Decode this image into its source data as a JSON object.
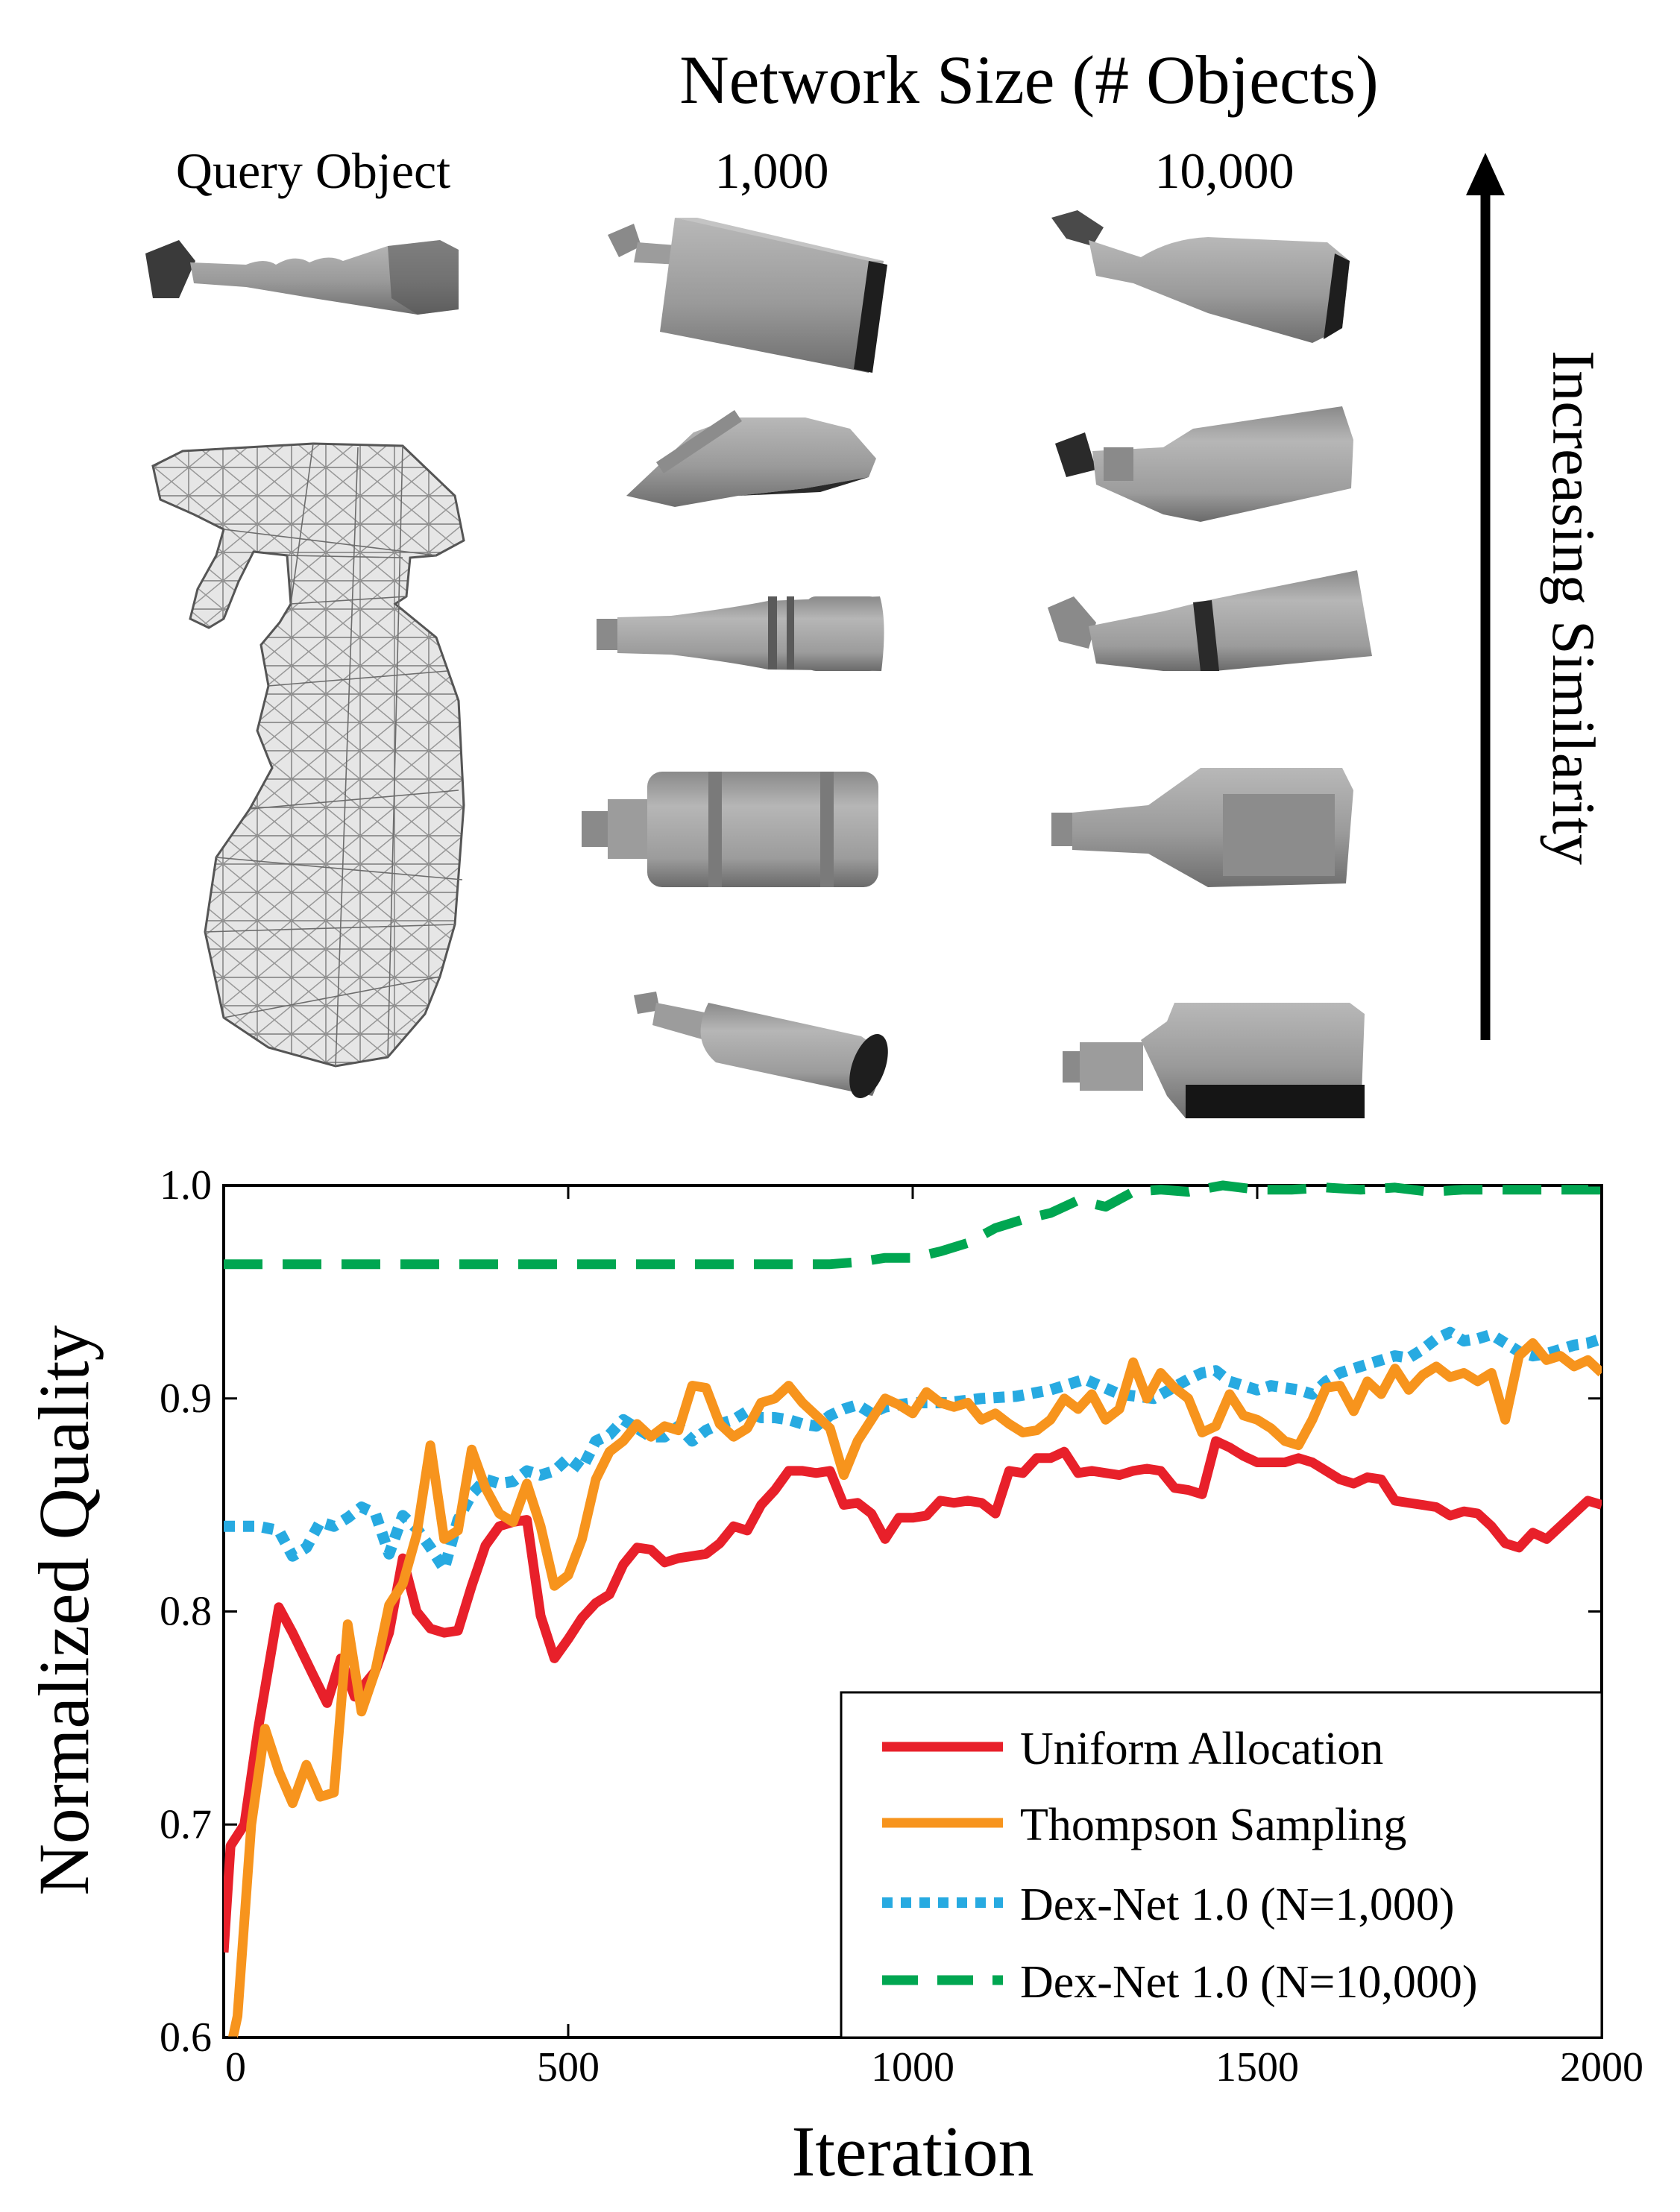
{
  "panel": {
    "network_size_title": "Network Size (# Objects)",
    "query_label": "Query Object",
    "col_1000_label": "1,000",
    "col_10000_label": "10,000",
    "similarity_label": "Increasing Similarity"
  },
  "colors": {
    "uniform": "#e8202a",
    "thompson": "#f7941d",
    "dexnet_1000": "#27aae1",
    "dexnet_10000": "#00a651",
    "object_gray": "#9a9a9a",
    "mesh_fill": "#e4e4e4"
  },
  "chart_data": {
    "type": "line",
    "title": "",
    "xlabel": "Iteration",
    "ylabel": "Normalized Quality",
    "xlim": [
      0,
      2000
    ],
    "ylim": [
      0.6,
      1.0
    ],
    "xticks": [
      0,
      500,
      1000,
      1500,
      2000
    ],
    "yticks": [
      0.6,
      0.7,
      0.8,
      0.9,
      1.0
    ],
    "xtick_labels": [
      "0",
      "500",
      "1000",
      "1500",
      "2000"
    ],
    "ytick_labels": [
      "0.6",
      "0.7",
      "0.8",
      "0.9",
      "1.0"
    ],
    "grid": false,
    "legend_position": "bottom-right",
    "series": [
      {
        "name": "Uniform Allocation",
        "style": "solid",
        "x": [
          0,
          10,
          30,
          50,
          80,
          100,
          130,
          150,
          170,
          190,
          220,
          240,
          260,
          280,
          300,
          320,
          340,
          360,
          380,
          400,
          420,
          440,
          460,
          480,
          500,
          520,
          540,
          560,
          580,
          600,
          620,
          640,
          660,
          680,
          700,
          720,
          740,
          760,
          780,
          800,
          820,
          840,
          860,
          880,
          900,
          920,
          940,
          960,
          980,
          1000,
          1020,
          1040,
          1060,
          1080,
          1100,
          1120,
          1140,
          1160,
          1180,
          1200,
          1220,
          1240,
          1260,
          1280,
          1300,
          1320,
          1340,
          1360,
          1380,
          1400,
          1420,
          1440,
          1460,
          1480,
          1500,
          1520,
          1540,
          1560,
          1580,
          1600,
          1620,
          1640,
          1660,
          1680,
          1700,
          1720,
          1740,
          1760,
          1780,
          1800,
          1820,
          1840,
          1860,
          1880,
          1900,
          1920,
          1940,
          1960,
          1980,
          2000
        ],
        "values": [
          0.64,
          0.69,
          0.7,
          0.745,
          0.802,
          0.79,
          0.77,
          0.757,
          0.778,
          0.76,
          0.772,
          0.79,
          0.825,
          0.8,
          0.792,
          0.79,
          0.791,
          0.812,
          0.831,
          0.84,
          0.842,
          0.843,
          0.798,
          0.778,
          0.787,
          0.797,
          0.804,
          0.808,
          0.822,
          0.83,
          0.829,
          0.823,
          0.825,
          0.826,
          0.827,
          0.832,
          0.84,
          0.838,
          0.85,
          0.857,
          0.866,
          0.866,
          0.865,
          0.866,
          0.85,
          0.851,
          0.846,
          0.834,
          0.844,
          0.844,
          0.845,
          0.852,
          0.851,
          0.852,
          0.851,
          0.846,
          0.866,
          0.865,
          0.872,
          0.872,
          0.875,
          0.865,
          0.866,
          0.865,
          0.864,
          0.866,
          0.867,
          0.866,
          0.858,
          0.857,
          0.855,
          0.88,
          0.877,
          0.873,
          0.87,
          0.87,
          0.87,
          0.872,
          0.87,
          0.866,
          0.862,
          0.86,
          0.863,
          0.862,
          0.852,
          0.851,
          0.85,
          0.849,
          0.845,
          0.847,
          0.846,
          0.84,
          0.832,
          0.83,
          0.837,
          0.834,
          0.84,
          0.846,
          0.852,
          0.85
        ]
      },
      {
        "name": "Thompson Sampling",
        "style": "solid",
        "x": [
          0,
          20,
          40,
          60,
          80,
          100,
          120,
          140,
          160,
          180,
          200,
          220,
          240,
          260,
          280,
          300,
          320,
          340,
          360,
          380,
          400,
          420,
          440,
          460,
          480,
          500,
          520,
          540,
          560,
          580,
          600,
          620,
          640,
          660,
          680,
          700,
          720,
          740,
          760,
          780,
          800,
          820,
          840,
          860,
          880,
          900,
          920,
          940,
          960,
          980,
          1000,
          1020,
          1040,
          1060,
          1080,
          1100,
          1120,
          1140,
          1160,
          1180,
          1200,
          1220,
          1240,
          1260,
          1280,
          1300,
          1320,
          1340,
          1360,
          1380,
          1400,
          1420,
          1440,
          1460,
          1480,
          1500,
          1520,
          1540,
          1560,
          1580,
          1600,
          1620,
          1640,
          1660,
          1680,
          1700,
          1720,
          1740,
          1760,
          1780,
          1800,
          1820,
          1840,
          1860,
          1880,
          1900,
          1920,
          1940,
          1960,
          1980,
          2000
        ],
        "values": [
          0.58,
          0.61,
          0.7,
          0.745,
          0.725,
          0.71,
          0.728,
          0.713,
          0.715,
          0.794,
          0.753,
          0.772,
          0.803,
          0.813,
          0.836,
          0.878,
          0.834,
          0.838,
          0.876,
          0.858,
          0.846,
          0.842,
          0.86,
          0.84,
          0.812,
          0.817,
          0.834,
          0.862,
          0.875,
          0.88,
          0.888,
          0.882,
          0.887,
          0.885,
          0.906,
          0.905,
          0.888,
          0.882,
          0.886,
          0.898,
          0.9,
          0.906,
          0.898,
          0.892,
          0.886,
          0.864,
          0.88,
          0.89,
          0.9,
          0.897,
          0.893,
          0.903,
          0.898,
          0.896,
          0.898,
          0.89,
          0.893,
          0.888,
          0.884,
          0.885,
          0.89,
          0.9,
          0.895,
          0.902,
          0.89,
          0.895,
          0.917,
          0.9,
          0.912,
          0.905,
          0.9,
          0.884,
          0.887,
          0.902,
          0.892,
          0.89,
          0.886,
          0.88,
          0.878,
          0.89,
          0.905,
          0.906,
          0.894,
          0.908,
          0.902,
          0.914,
          0.904,
          0.911,
          0.915,
          0.91,
          0.912,
          0.908,
          0.912,
          0.89,
          0.92,
          0.926,
          0.918,
          0.92,
          0.915,
          0.918,
          0.912
        ]
      },
      {
        "name": "Dex-Net 1.0 (N=1,000)",
        "style": "dotted",
        "x": [
          0,
          50,
          80,
          100,
          120,
          140,
          160,
          180,
          200,
          220,
          240,
          260,
          280,
          300,
          320,
          340,
          360,
          380,
          400,
          420,
          440,
          460,
          480,
          500,
          520,
          540,
          560,
          580,
          600,
          620,
          640,
          660,
          680,
          700,
          720,
          740,
          760,
          780,
          800,
          820,
          840,
          860,
          880,
          900,
          920,
          940,
          960,
          980,
          1000,
          1050,
          1100,
          1150,
          1200,
          1250,
          1300,
          1350,
          1400,
          1420,
          1440,
          1460,
          1480,
          1500,
          1520,
          1540,
          1560,
          1580,
          1600,
          1620,
          1640,
          1660,
          1680,
          1700,
          1720,
          1740,
          1760,
          1780,
          1800,
          1820,
          1840,
          1860,
          1880,
          1900,
          1920,
          1940,
          1960,
          1980,
          2000
        ],
        "values": [
          0.84,
          0.84,
          0.838,
          0.826,
          0.83,
          0.842,
          0.84,
          0.844,
          0.849,
          0.846,
          0.827,
          0.845,
          0.839,
          0.83,
          0.82,
          0.843,
          0.855,
          0.862,
          0.86,
          0.861,
          0.866,
          0.864,
          0.866,
          0.872,
          0.867,
          0.88,
          0.883,
          0.89,
          0.886,
          0.882,
          0.882,
          0.887,
          0.88,
          0.885,
          0.888,
          0.89,
          0.894,
          0.891,
          0.891,
          0.89,
          0.888,
          0.887,
          0.892,
          0.895,
          0.897,
          0.893,
          0.896,
          0.897,
          0.898,
          0.898,
          0.9,
          0.901,
          0.904,
          0.909,
          0.902,
          0.9,
          0.909,
          0.912,
          0.913,
          0.908,
          0.906,
          0.904,
          0.906,
          0.905,
          0.904,
          0.902,
          0.908,
          0.912,
          0.914,
          0.916,
          0.918,
          0.92,
          0.919,
          0.923,
          0.928,
          0.931,
          0.927,
          0.928,
          0.93,
          0.926,
          0.922,
          0.92,
          0.921,
          0.923,
          0.925,
          0.926,
          0.928
        ]
      },
      {
        "name": "Dex-Net 1.0 (N=10,000)",
        "style": "dashed",
        "x": [
          0,
          100,
          200,
          300,
          400,
          500,
          600,
          700,
          800,
          880,
          920,
          960,
          1000,
          1040,
          1080,
          1120,
          1160,
          1200,
          1240,
          1280,
          1320,
          1360,
          1400,
          1450,
          1500,
          1550,
          1600,
          1650,
          1700,
          1750,
          1800,
          1900,
          2000
        ],
        "values": [
          0.963,
          0.963,
          0.963,
          0.963,
          0.963,
          0.963,
          0.963,
          0.963,
          0.963,
          0.963,
          0.964,
          0.966,
          0.966,
          0.969,
          0.973,
          0.98,
          0.984,
          0.987,
          0.993,
          0.99,
          0.997,
          0.998,
          0.997,
          1.0,
          0.998,
          0.998,
          0.999,
          0.998,
          0.999,
          0.997,
          0.998,
          0.998,
          0.998
        ]
      }
    ]
  }
}
